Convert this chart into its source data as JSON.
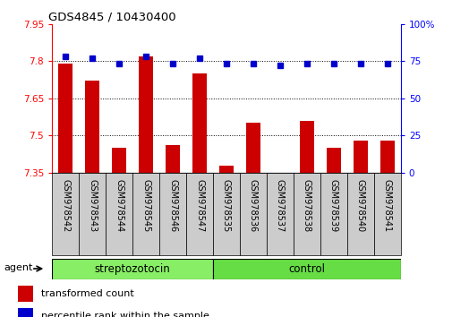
{
  "title": "GDS4845 / 10430400",
  "samples": [
    "GSM978542",
    "GSM978543",
    "GSM978544",
    "GSM978545",
    "GSM978546",
    "GSM978547",
    "GSM978535",
    "GSM978536",
    "GSM978537",
    "GSM978538",
    "GSM978539",
    "GSM978540",
    "GSM978541"
  ],
  "transformed_count": [
    7.79,
    7.72,
    7.45,
    7.82,
    7.46,
    7.75,
    7.38,
    7.55,
    7.35,
    7.56,
    7.45,
    7.48,
    7.48
  ],
  "percentile_rank": [
    78,
    77,
    73,
    78,
    73,
    77,
    73,
    73,
    72,
    73,
    73,
    73,
    73
  ],
  "n_strep": 6,
  "n_ctrl": 7,
  "ylim_left": [
    7.35,
    7.95
  ],
  "ylim_right": [
    0,
    100
  ],
  "yticks_left": [
    7.35,
    7.5,
    7.65,
    7.8,
    7.95
  ],
  "yticks_right": [
    0,
    25,
    50,
    75,
    100
  ],
  "ytick_right_labels": [
    "0",
    "25",
    "50",
    "75",
    "100%"
  ],
  "bar_color": "#cc0000",
  "dot_color": "#0000cc",
  "strep_color": "#88ee66",
  "ctrl_color": "#66dd44",
  "ticklabel_bg": "#cccccc",
  "agent_label": "agent",
  "strep_label": "streptozotocin",
  "ctrl_label": "control",
  "legend_bar_label": "transformed count",
  "legend_dot_label": "percentile rank within the sample",
  "grid_yticks": [
    7.5,
    7.65,
    7.8
  ],
  "dotted_style": "dotted"
}
